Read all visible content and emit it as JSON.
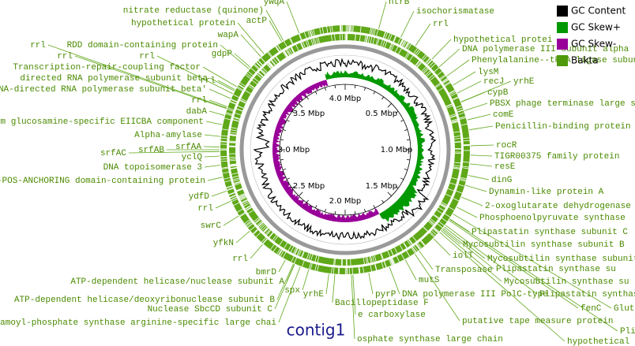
{
  "title": "contig1",
  "legend": [
    {
      "label": "GC Content",
      "color": "#000000"
    },
    {
      "label": "GC Skew+",
      "color": "#009900"
    },
    {
      "label": "GC Skew-",
      "color": "#990099"
    },
    {
      "label": "Bakta",
      "color": "#4f9a0a"
    }
  ],
  "ticks": [
    "4.0 Mbp",
    "0.5 Mbp",
    "1.0 Mbp",
    "1.5 Mbp",
    "2.0 Mbp",
    "2.5 Mbp",
    "3.0 Mbp",
    "3.5 Mbp"
  ],
  "labels": [
    "ywqA",
    "nitrate reductase (quinone)",
    "actP",
    "hypothetical protein",
    "wapA",
    "RDD domain-containing protein",
    "gdpP",
    "rrl",
    "rrl",
    "rrl",
    "Transcription-repair-coupling factor",
    "directed RNA polymerase subunit beta",
    "rrl",
    "DNA-directed RNA polymerase subunit beta'",
    "rrl",
    "dabA",
    "em glucosamine-specific EIICBA component",
    "Alpha-amylase",
    "srfAA",
    "srfAB",
    "srfAC",
    "yclQ",
    "DNA topoisomerase 3",
    "-POS-ANCHORING domain-containing protein",
    "ydfD",
    "rrl",
    "swrC",
    "yfkN",
    "rrl",
    "bmrD",
    "ATP-dependent helicase/nuclease subunit A",
    "spx",
    "ATP-dependent helicase/deoxyribonuclease subunit B",
    "yrhE",
    "Nuclease SbcCD subunit C",
    "amoyl-phosphate synthase arginine-specific large chai",
    "ntrB",
    "isochorismatase",
    "rrl",
    "hypothetical protei",
    "DNA polymerase III subunit alpha",
    "Phenylalanine--tRNA ligase subunit beta",
    "lysM",
    "recJ",
    "yrhE",
    "cypB",
    "PBSX phage terminase large s",
    "comE",
    "Penicillin-binding protein",
    "rocR",
    "TIGR00375 family protein",
    "resE",
    "dinG",
    "Dynamin-like protein A",
    "2-oxoglutarate dehydrogenase",
    "Phosphoenolpyruvate synthase",
    "Plipastatin synthase subunit C",
    "Mycosubtilin synthase subunit B",
    "iolT",
    "Mycosubtilin synthase subunit",
    "Plipastatin synthase su",
    "Transposase",
    "mutS",
    "Mycosubtilin synthase su",
    "DNA polymerase III PolC-type",
    "Plipastatin synthase",
    "pyrP",
    "Bacillopeptidase F",
    "fenC",
    "Gluta",
    "e carboxylase",
    "putative tape measure protein",
    "Plipast",
    "osphate synthase large chain",
    "hypothetical"
  ]
}
